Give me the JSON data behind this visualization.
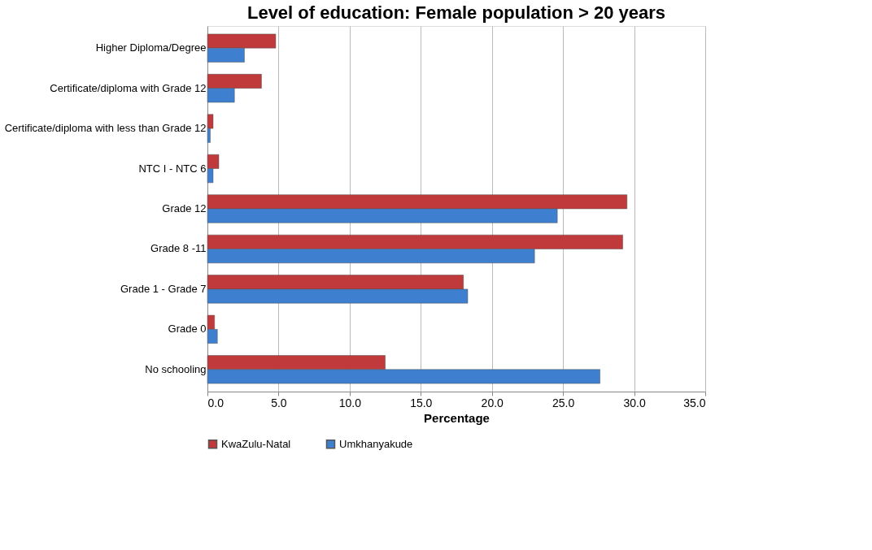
{
  "chart_data": {
    "type": "bar",
    "orientation": "horizontal",
    "title": "Level of education: Female population > 20 years",
    "xlabel": "Percentage",
    "categories": [
      "Higher Diploma/Degree",
      "Certificate/diploma with Grade 12",
      "Certificate/diploma with less than Grade 12",
      "NTC I -  NTC 6",
      "Grade 12",
      "Grade 8 -11",
      "Grade 1 - Grade 7",
      "Grade 0",
      "No schooling"
    ],
    "series": [
      {
        "name": "KwaZulu-Natal",
        "color": "#c0393b",
        "values": [
          4.8,
          3.8,
          0.4,
          0.8,
          29.5,
          29.2,
          18.0,
          0.5,
          12.5
        ]
      },
      {
        "name": "Umkhanyakude",
        "color": "#3f7fd0",
        "values": [
          2.6,
          1.9,
          0.2,
          0.4,
          24.6,
          23.0,
          18.3,
          0.7,
          27.6
        ]
      }
    ],
    "xlim": [
      0,
      35
    ],
    "xticks": [
      {
        "value": 0,
        "label": "0.0"
      },
      {
        "value": 5,
        "label": "5.0"
      },
      {
        "value": 10,
        "label": "10.0"
      },
      {
        "value": 15,
        "label": "15.0"
      },
      {
        "value": 20,
        "label": "20.0"
      },
      {
        "value": 25,
        "label": "25.0"
      },
      {
        "value": 30,
        "label": "30.0"
      },
      {
        "value": 35,
        "label": "35.0"
      }
    ],
    "grid": "x",
    "legend": "bottom"
  }
}
